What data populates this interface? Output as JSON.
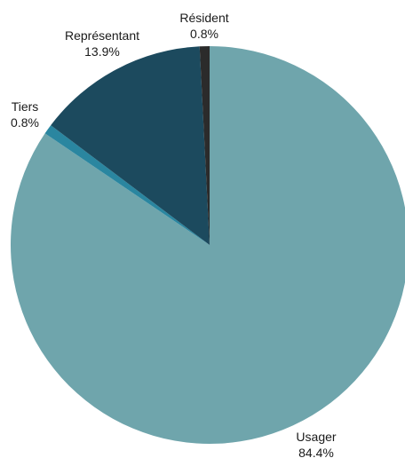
{
  "chart_data": {
    "type": "pie",
    "title": "",
    "start_angle_deg": 0,
    "direction": "clockwise",
    "slices": [
      {
        "label": "Usager",
        "value": 84.4,
        "value_label": "84.4%",
        "color": "#6fa5ac"
      },
      {
        "label": "Tiers",
        "value": 0.8,
        "value_label": "0.8%",
        "color": "#2a86a0"
      },
      {
        "label": "Représentant",
        "value": 13.9,
        "value_label": "13.9%",
        "color": "#1c4a5e"
      },
      {
        "label": "Résident",
        "value": 0.8,
        "value_label": "0.8%",
        "color": "#2b2b2b"
      }
    ]
  }
}
